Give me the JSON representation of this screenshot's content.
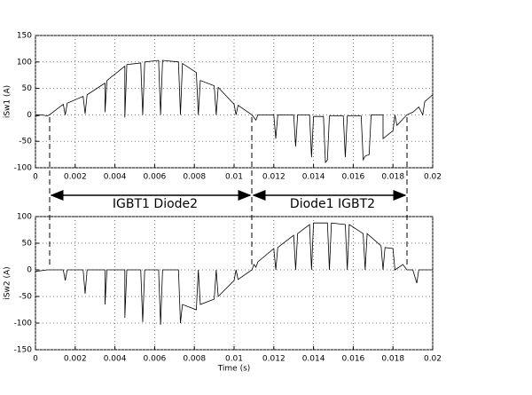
{
  "chart_data": [
    {
      "type": "line",
      "ylabel": "iSw1 (A)",
      "xlim": [
        0,
        0.02
      ],
      "xticks": [
        0,
        0.002,
        0.004,
        0.006,
        0.008,
        0.01,
        0.012,
        0.014,
        0.016,
        0.018,
        0.02
      ],
      "ylim": [
        -100,
        150
      ],
      "yticks": [
        -100,
        -50,
        0,
        50,
        100,
        150
      ],
      "grid": true,
      "series": [
        {
          "color": "#000000",
          "x": [
            0,
            0.0003,
            0.0006,
            0.0007,
            0.0014,
            0.0015,
            0.0016,
            0.0024,
            0.0025,
            0.0026,
            0.0035,
            0.0035,
            0.0036,
            0.0045,
            0.0045,
            0.0046,
            0.0053,
            0.0054,
            0.0055,
            0.0062,
            0.0063,
            0.0064,
            0.0072,
            0.0073,
            0.0074,
            0.0081,
            0.0082,
            0.0083,
            0.009,
            0.0091,
            0.0092,
            0.01,
            0.0101,
            0.0102,
            0.0109,
            0.011,
            0.0111,
            0.0112,
            0.012,
            0.0121,
            0.0122,
            0.013,
            0.0131,
            0.0132,
            0.0138,
            0.0139,
            0.014,
            0.0145,
            0.0146,
            0.0147,
            0.0148,
            0.0155,
            0.0156,
            0.0157,
            0.0164,
            0.0165,
            0.0166,
            0.0168,
            0.0169,
            0.0175,
            0.0175,
            0.018,
            0.0181,
            0.0182,
            0.0187,
            0.019,
            0.0193,
            0.0195,
            0.0196,
            0.02
          ],
          "values": [
            -3,
            0,
            -2,
            0,
            20,
            0,
            22,
            35,
            2,
            38,
            60,
            5,
            65,
            92,
            -5,
            95,
            98,
            0,
            100,
            103,
            0,
            103,
            100,
            0,
            97,
            80,
            0,
            65,
            55,
            0,
            52,
            20,
            0,
            18,
            0,
            -5,
            -10,
            0,
            0,
            -45,
            0,
            0,
            -60,
            0,
            0,
            -80,
            -3,
            -3,
            -90,
            -85,
            -2,
            -2,
            -80,
            -2,
            -2,
            -85,
            -78,
            -75,
            0,
            0,
            -45,
            -30,
            0,
            -20,
            0,
            5,
            15,
            0,
            25,
            38
          ]
        }
      ]
    },
    {
      "type": "line",
      "ylabel": "iSw2 (A)",
      "xlabel": "Time (s)",
      "xlim": [
        0,
        0.02
      ],
      "xticks": [
        0,
        0.002,
        0.004,
        0.006,
        0.008,
        0.01,
        0.012,
        0.014,
        0.016,
        0.018,
        0.02
      ],
      "ylim": [
        -150,
        100
      ],
      "yticks": [
        -150,
        -100,
        -50,
        0,
        50,
        100
      ],
      "grid": true,
      "series": [
        {
          "color": "#000000",
          "x": [
            0,
            0.0006,
            0.0007,
            0.0014,
            0.0015,
            0.0016,
            0.0024,
            0.0025,
            0.0026,
            0.0035,
            0.0035,
            0.0036,
            0.0045,
            0.0045,
            0.0046,
            0.0053,
            0.0054,
            0.0055,
            0.0062,
            0.0063,
            0.0064,
            0.0072,
            0.0073,
            0.0074,
            0.0081,
            0.0082,
            0.0083,
            0.009,
            0.0091,
            0.0092,
            0.01,
            0.0101,
            0.0102,
            0.0109,
            0.011,
            0.0111,
            0.0112,
            0.012,
            0.0121,
            0.0122,
            0.013,
            0.0131,
            0.0132,
            0.0138,
            0.0139,
            0.014,
            0.0147,
            0.0148,
            0.0149,
            0.0156,
            0.0157,
            0.0158,
            0.0165,
            0.0166,
            0.0167,
            0.0174,
            0.0175,
            0.0176,
            0.018,
            0.0181,
            0.0185,
            0.0187,
            0.019,
            0.0192,
            0.0193,
            0.02
          ],
          "values": [
            -3,
            0,
            0,
            0,
            -20,
            0,
            0,
            -45,
            0,
            0,
            -65,
            0,
            0,
            -90,
            0,
            0,
            -98,
            0,
            0,
            -103,
            0,
            0,
            -100,
            -65,
            -75,
            0,
            -65,
            -55,
            0,
            -50,
            -20,
            0,
            -18,
            0,
            10,
            5,
            15,
            40,
            0,
            42,
            65,
            0,
            68,
            85,
            0,
            88,
            88,
            0,
            88,
            85,
            0,
            85,
            68,
            0,
            68,
            45,
            0,
            42,
            40,
            0,
            10,
            0,
            0,
            -25,
            0,
            0
          ]
        }
      ]
    }
  ],
  "annotations": [
    {
      "text": "IGBT1 Diode2"
    },
    {
      "text": "Diode1 IGBT2"
    }
  ]
}
